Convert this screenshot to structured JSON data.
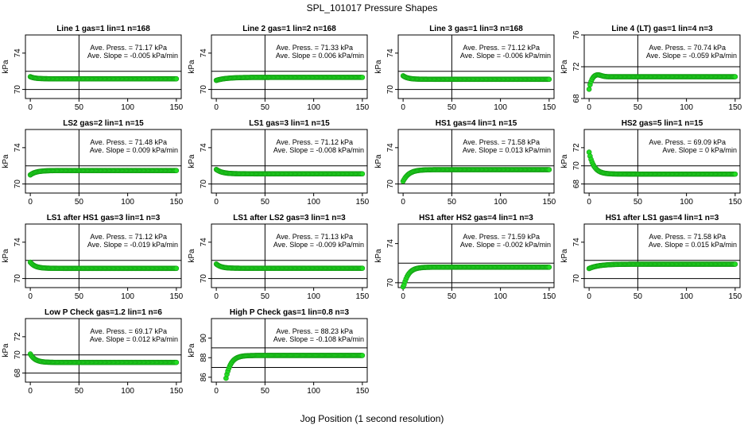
{
  "page_title": "SPL_101017  Pressure Shapes",
  "x_axis_label": "Jog Position (1 second resolution)",
  "chart_data": [
    {
      "type": "scatter",
      "title": "Line 1 gas=1 lin=1 n=168",
      "ylabel": "kPa",
      "xlim": [
        0,
        150
      ],
      "ylim": [
        69,
        76
      ],
      "yticks": [
        70,
        74
      ],
      "xticks": [
        0,
        50,
        100,
        150
      ],
      "hlines": [
        72,
        70
      ],
      "vline": 50,
      "press_text": "Ave. Press. = 71.17 kPa",
      "slope_text": "Ave. Slope = -0.005 kPa/min",
      "shape": {
        "start": 71.4,
        "settle": 71.17,
        "tau": 5,
        "n": 150
      },
      "point_color": "#22dd22"
    },
    {
      "type": "scatter",
      "title": "Line 2 gas=1 lin=2 n=168",
      "ylabel": "kPa",
      "xlim": [
        0,
        150
      ],
      "ylim": [
        69,
        76
      ],
      "yticks": [
        70,
        74
      ],
      "xticks": [
        0,
        50,
        100,
        150
      ],
      "hlines": [
        72,
        70
      ],
      "vline": 50,
      "press_text": "Ave. Press. = 71.33 kPa",
      "slope_text": "Ave. Slope = 0.006 kPa/min",
      "shape": {
        "start": 71.0,
        "settle": 71.33,
        "tau": 10,
        "n": 150
      },
      "point_color": "#22dd22"
    },
    {
      "type": "scatter",
      "title": "Line 3 gas=1 lin=3 n=168",
      "ylabel": "kPa",
      "xlim": [
        0,
        150
      ],
      "ylim": [
        69,
        76
      ],
      "yticks": [
        70,
        74
      ],
      "xticks": [
        0,
        50,
        100,
        150
      ],
      "hlines": [
        72,
        70
      ],
      "vline": 50,
      "press_text": "Ave. Press. = 71.12 kPa",
      "slope_text": "Ave. Slope = -0.006 kPa/min",
      "shape": {
        "start": 71.5,
        "settle": 71.12,
        "tau": 5,
        "n": 150
      },
      "point_color": "#22dd22"
    },
    {
      "type": "scatter",
      "title": "Line 4 (LT) gas=1 lin=4 n=3",
      "ylabel": "kPa",
      "xlim": [
        0,
        150
      ],
      "ylim": [
        68,
        76
      ],
      "yticks": [
        68,
        72,
        76
      ],
      "xticks": [
        0,
        50,
        100,
        150
      ],
      "hlines": [
        72,
        70
      ],
      "vline": 50,
      "press_text": "Ave. Press. = 70.74 kPa",
      "slope_text": "Ave. Slope = -0.059 kPa/min",
      "shape": {
        "start": 69.1,
        "settle": 70.74,
        "tau": 2.5,
        "n": 150,
        "overshoot": 0.3
      },
      "point_color": "#22dd22"
    },
    {
      "type": "scatter",
      "title": "LS2 gas=2 lin=1 n=15",
      "ylabel": "kPa",
      "xlim": [
        0,
        150
      ],
      "ylim": [
        69,
        76
      ],
      "yticks": [
        70,
        74
      ],
      "xticks": [
        0,
        50,
        100,
        150
      ],
      "hlines": [
        72,
        70
      ],
      "vline": 50,
      "press_text": "Ave. Press. = 71.48 kPa",
      "slope_text": "Ave. Slope = 0.009 kPa/min",
      "shape": {
        "start": 71.0,
        "settle": 71.48,
        "tau": 6,
        "n": 150
      },
      "point_color": "#22dd22"
    },
    {
      "type": "scatter",
      "title": "LS1 gas=3 lin=1 n=15",
      "ylabel": "kPa",
      "xlim": [
        0,
        150
      ],
      "ylim": [
        69,
        76
      ],
      "yticks": [
        70,
        74
      ],
      "xticks": [
        0,
        50,
        100,
        150
      ],
      "hlines": [
        72,
        70
      ],
      "vline": 50,
      "press_text": "Ave. Press. = 71.12 kPa",
      "slope_text": "Ave. Slope = -0.008 kPa/min",
      "shape": {
        "start": 71.6,
        "settle": 71.12,
        "tau": 6,
        "n": 150
      },
      "point_color": "#22dd22"
    },
    {
      "type": "scatter",
      "title": "HS1 gas=4 lin=1 n=15",
      "ylabel": "kPa",
      "xlim": [
        0,
        150
      ],
      "ylim": [
        69,
        76
      ],
      "yticks": [
        70,
        74
      ],
      "xticks": [
        0,
        50,
        100,
        150
      ],
      "hlines": [
        72,
        70
      ],
      "vline": 50,
      "press_text": "Ave. Press. = 71.58 kPa",
      "slope_text": "Ave. Slope = 0.013 kPa/min",
      "shape": {
        "start": 70.3,
        "settle": 71.58,
        "tau": 6,
        "n": 150
      },
      "point_color": "#22dd22"
    },
    {
      "type": "scatter",
      "title": "HS2 gas=5 lin=1 n=15",
      "ylabel": "kPa",
      "xlim": [
        0,
        150
      ],
      "ylim": [
        67,
        74
      ],
      "yticks": [
        68,
        70,
        72
      ],
      "xticks": [
        0,
        50,
        100,
        150
      ],
      "hlines": [
        70,
        68
      ],
      "vline": 50,
      "press_text": "Ave. Press. = 69.09 kPa",
      "slope_text": "Ave. Slope = 0 kPa/min",
      "shape": {
        "start": 71.5,
        "settle": 69.09,
        "tau": 5,
        "n": 150
      },
      "point_color": "#22dd22"
    },
    {
      "type": "scatter",
      "title": "LS1 after HS1 gas=3 lin=1 n=3",
      "ylabel": "kPa",
      "xlim": [
        0,
        150
      ],
      "ylim": [
        69,
        76
      ],
      "yticks": [
        70,
        74
      ],
      "xticks": [
        0,
        50,
        100,
        150
      ],
      "hlines": [
        72,
        70
      ],
      "vline": 50,
      "press_text": "Ave. Press. = 71.12 kPa",
      "slope_text": "Ave. Slope = -0.019 kPa/min",
      "shape": {
        "start": 71.8,
        "settle": 71.12,
        "tau": 5,
        "n": 150
      },
      "point_color": "#22dd22"
    },
    {
      "type": "scatter",
      "title": "LS1 after LS2 gas=3 lin=1 n=3",
      "ylabel": "kPa",
      "xlim": [
        0,
        150
      ],
      "ylim": [
        69,
        76
      ],
      "yticks": [
        70,
        74
      ],
      "xticks": [
        0,
        50,
        100,
        150
      ],
      "hlines": [
        72,
        70
      ],
      "vline": 50,
      "press_text": "Ave. Press. = 71.13 kPa",
      "slope_text": "Ave. Slope = -0.009 kPa/min",
      "shape": {
        "start": 71.6,
        "settle": 71.13,
        "tau": 5,
        "n": 150
      },
      "point_color": "#22dd22"
    },
    {
      "type": "scatter",
      "title": "HS1 after HS2 gas=4 lin=1 n=3",
      "ylabel": "kPa",
      "xlim": [
        0,
        150
      ],
      "ylim": [
        69.5,
        76
      ],
      "yticks": [
        70,
        74
      ],
      "xticks": [
        0,
        50,
        100,
        150
      ],
      "hlines": [
        72,
        70
      ],
      "vline": 50,
      "press_text": "Ave. Press. = 71.59 kPa",
      "slope_text": "Ave. Slope = -0.002 kPa/min",
      "shape": {
        "start": 69.4,
        "settle": 71.59,
        "tau": 5,
        "n": 150
      },
      "point_color": "#22dd22"
    },
    {
      "type": "scatter",
      "title": "HS1 after LS1 gas=4 lin=1 n=3",
      "ylabel": "kPa",
      "xlim": [
        0,
        150
      ],
      "ylim": [
        69,
        76
      ],
      "yticks": [
        70,
        74
      ],
      "xticks": [
        0,
        50,
        100,
        150
      ],
      "hlines": [
        72,
        70
      ],
      "vline": 50,
      "press_text": "Ave. Press. = 71.58 kPa",
      "slope_text": "Ave. Slope = 0.015 kPa/min",
      "shape": {
        "start": 71.1,
        "settle": 71.58,
        "tau": 10,
        "n": 150
      },
      "point_color": "#22dd22"
    },
    {
      "type": "scatter",
      "title": "Low P Check gas=1.2 lin=1 n=6",
      "ylabel": "kPa",
      "xlim": [
        0,
        150
      ],
      "ylim": [
        67,
        74
      ],
      "yticks": [
        68,
        70,
        72
      ],
      "xticks": [
        0,
        50,
        100,
        150
      ],
      "hlines": [
        70,
        68
      ],
      "vline": 50,
      "press_text": "Ave. Press. = 69.17 kPa",
      "slope_text": "Ave. Slope = 0.012 kPa/min",
      "shape": {
        "start": 70.1,
        "settle": 69.17,
        "tau": 5,
        "n": 150
      },
      "point_color": "#22dd22"
    },
    {
      "type": "scatter",
      "title": "High P Check gas=1 lin=0.8 n=3",
      "ylabel": "kPa",
      "xlim": [
        0,
        150
      ],
      "ylim": [
        85.5,
        92
      ],
      "yticks": [
        86,
        88,
        90
      ],
      "xticks": [
        0,
        50,
        100,
        150
      ],
      "hlines": [
        89,
        87
      ],
      "vline": 50,
      "press_text": "Ave. Press. = 88.23 kPa",
      "slope_text": "Ave. Slope = -0.108 kPa/min",
      "shape": {
        "start": 85.9,
        "settle": 88.23,
        "tau": 5,
        "n": 150,
        "x0": 10
      },
      "point_color": "#22dd22"
    }
  ]
}
